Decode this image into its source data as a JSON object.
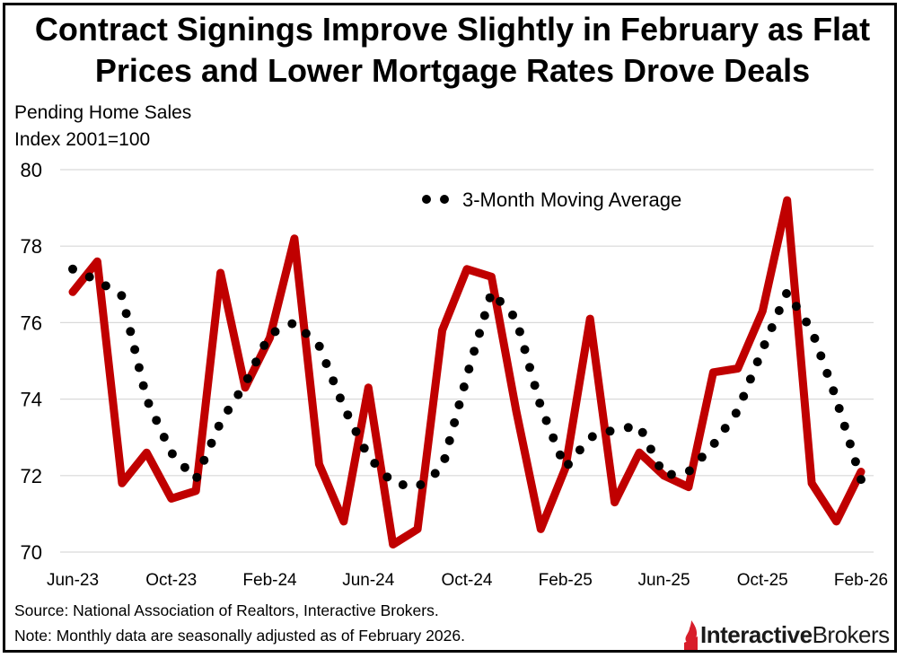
{
  "chart_data": {
    "type": "line",
    "title": "Contract Signings Improve Slightly in February as Flat Prices and Lower Mortgage Rates Drove Deals",
    "ylabel_line1": "Pending Home Sales",
    "ylabel_line2": "Index 2001=100",
    "ylim": [
      70,
      80
    ],
    "yticks": [
      70,
      72,
      74,
      76,
      78,
      80
    ],
    "xtick_labels": [
      "Jun-23",
      "Oct-23",
      "Feb-24",
      "Jun-24",
      "Oct-24",
      "Feb-25",
      "Jun-25",
      "Oct-25",
      "Feb-26"
    ],
    "x": [
      "Jun-23",
      "Jul-23",
      "Aug-23",
      "Sep-23",
      "Oct-23",
      "Nov-23",
      "Dec-23",
      "Jan-24",
      "Feb-24",
      "Mar-24",
      "Apr-24",
      "May-24",
      "Jun-24",
      "Jul-24",
      "Aug-24",
      "Sep-24",
      "Oct-24",
      "Nov-24",
      "Dec-24",
      "Jan-25",
      "Feb-25",
      "Mar-25",
      "Apr-25",
      "May-25",
      "Jun-25",
      "Jul-25",
      "Aug-25",
      "Sep-25",
      "Oct-25",
      "Nov-25",
      "Dec-25",
      "Jan-26",
      "Feb-26"
    ],
    "grid": true,
    "legend_position": "top-center",
    "series": [
      {
        "style": "solid",
        "color": "#c00000",
        "values": [
          76.8,
          77.6,
          71.8,
          72.6,
          71.4,
          71.6,
          77.3,
          74.3,
          75.6,
          78.2,
          72.3,
          70.8,
          74.3,
          70.2,
          70.6,
          75.8,
          77.4,
          77.2,
          73.7,
          70.6,
          72.2,
          76.1,
          71.3,
          72.6,
          72.0,
          71.7,
          74.7,
          74.8,
          76.3,
          79.2,
          71.8,
          70.8,
          72.1
        ]
      },
      {
        "name": "3-Month Moving Average",
        "style": "dotted",
        "color": "#000000",
        "values": [
          77.4,
          77.1,
          76.7,
          74.0,
          72.6,
          71.9,
          73.4,
          74.4,
          75.7,
          76.0,
          75.4,
          73.8,
          72.5,
          71.8,
          71.7,
          72.2,
          74.6,
          76.8,
          76.1,
          73.8,
          72.2,
          73.0,
          73.2,
          73.3,
          72.0,
          72.1,
          72.8,
          73.7,
          75.3,
          76.8,
          75.8,
          74.0,
          71.9
        ]
      }
    ]
  },
  "footer": {
    "source": "Source: National Association of Realtors, Interactive Brokers.",
    "note": "Note: Monthly data are seasonally adjusted as of February 2026.",
    "logo_bold": "Interactive",
    "logo_regular": "Brokers"
  }
}
